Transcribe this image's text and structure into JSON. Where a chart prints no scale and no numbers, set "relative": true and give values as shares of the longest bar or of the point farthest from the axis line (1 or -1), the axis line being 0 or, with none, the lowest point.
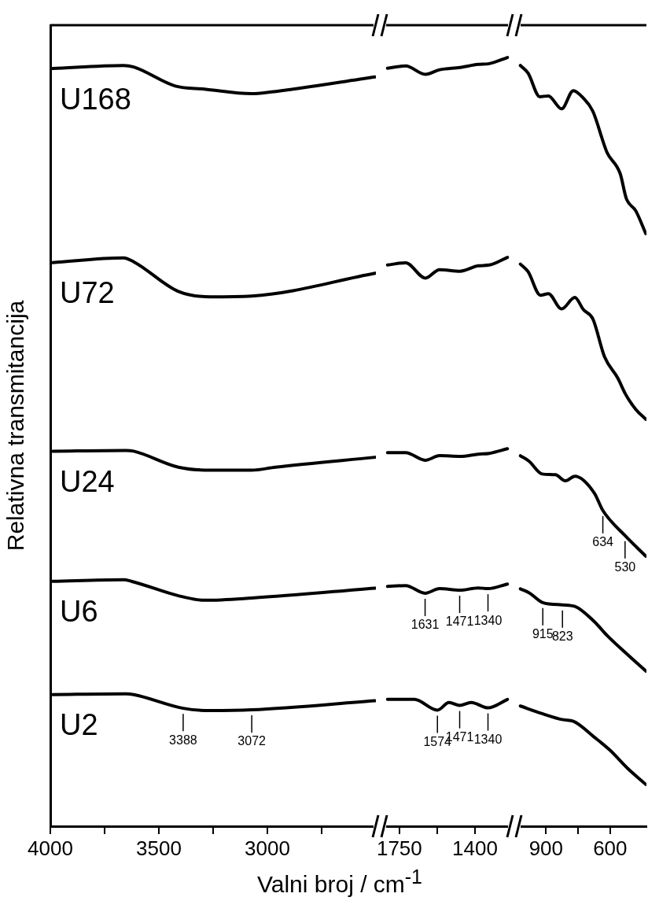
{
  "chart_data": [
    {
      "type": "line",
      "relative": true,
      "ylabel": "Relativna transmitancija",
      "xlabel": "Valni broj / cm$^{-1}$",
      "marker": "none",
      "xlim": [
        4000,
        2500
      ],
      "xticks": [
        4000,
        {
          "value": 3750,
          "label": null
        },
        3500,
        {
          "value": 3250,
          "label": null
        },
        3000,
        {
          "value": 2750,
          "label": null
        }
      ],
      "series": [
        {
          "name": "U168",
          "color": "#000000",
          "x": [
            3989,
            3663,
            3616,
            3424,
            3290,
            3072,
            2989,
            2504
          ],
          "values": [
            0.996,
            1,
            0.998,
            0.973,
            0.969,
            0.963,
            0.965,
            0.985
          ]
        },
        {
          "name": "U72",
          "color": "#000000",
          "x": [
            3989,
            3663,
            3616,
            3410,
            3265,
            3072,
            2504
          ],
          "values": [
            0.741,
            0.747,
            0.742,
            0.703,
            0.696,
            0.697,
            0.727
          ]
        },
        {
          "name": "U24",
          "color": "#000000",
          "x": [
            3989,
            3652,
            3616,
            3410,
            3265,
            3072,
            2963,
            2504
          ],
          "values": [
            0.493,
            0.494,
            0.493,
            0.472,
            0.468,
            0.468,
            0.472,
            0.485
          ]
        },
        {
          "name": "U6",
          "color": "#000000",
          "x": [
            3989,
            3663,
            3627,
            3410,
            3290,
            3072,
            2504
          ],
          "values": [
            0.322,
            0.324,
            0.322,
            0.303,
            0.297,
            0.3,
            0.313
          ]
        },
        {
          "name": "U2",
          "color": "#000000",
          "x": [
            3989,
            3652,
            3616,
            3388,
            3265,
            3072,
            2504
          ],
          "values": [
            0.173,
            0.174,
            0.173,
            0.155,
            0.152,
            0.153,
            0.165
          ]
        }
      ],
      "annotations": [
        {
          "text": "3388",
          "x": 3388,
          "y": 0.155
        },
        {
          "text": "3072",
          "x": 3072,
          "y": 0.153
        }
      ]
    },
    {
      "type": "line",
      "relative": true,
      "marker": "none",
      "xlim": [
        1815,
        1240
      ],
      "xticks": [
        1750,
        {
          "value": 1575,
          "label": null
        },
        1400
      ],
      "series": [
        {
          "color": "#000000",
          "x": [
            1805,
            1721,
            1630,
            1564,
            1469,
            1385,
            1334,
            1250
          ],
          "values": [
            0.986,
            0.989,
            0.978,
            0.984,
            0.987,
            0.991,
            0.992,
            1
          ]
        },
        {
          "color": "#000000",
          "x": [
            1805,
            1721,
            1630,
            1564,
            1469,
            1385,
            1334,
            1250
          ],
          "values": [
            0.73,
            0.733,
            0.713,
            0.724,
            0.722,
            0.729,
            0.73,
            0.74
          ]
        },
        {
          "color": "#000000",
          "x": [
            1805,
            1721,
            1630,
            1564,
            1469,
            1385,
            1334,
            1250
          ],
          "values": [
            0.486,
            0.486,
            0.476,
            0.482,
            0.481,
            0.484,
            0.485,
            0.491
          ]
        },
        {
          "color": "#000000",
          "x": [
            1805,
            1721,
            1631,
            1564,
            1471,
            1385,
            1340,
            1250
          ],
          "values": [
            0.312,
            0.313,
            0.303,
            0.309,
            0.307,
            0.31,
            0.309,
            0.315
          ]
        },
        {
          "color": "#000000",
          "x": [
            1805,
            1681,
            1574,
            1520,
            1471,
            1418,
            1340,
            1250
          ],
          "values": [
            0.165,
            0.165,
            0.151,
            0.161,
            0.157,
            0.161,
            0.154,
            0.165
          ]
        }
      ],
      "annotations": [
        {
          "text": "1631",
          "x": 1631,
          "y": 0.303
        },
        {
          "text": "1471",
          "x": 1471,
          "y": 0.307
        },
        {
          "text": "1340",
          "x": 1340,
          "y": 0.309
        },
        {
          "text": "1574",
          "x": 1574,
          "y": 0.151
        },
        {
          "text": "1471",
          "x": 1471,
          "y": 0.157
        },
        {
          "text": "1340",
          "x": 1340,
          "y": 0.154
        }
      ]
    },
    {
      "type": "line",
      "relative": true,
      "marker": "none",
      "xlim": [
        1030,
        430
      ],
      "xticks": [
        900,
        {
          "value": 750,
          "label": null
        },
        600
      ],
      "series": [
        {
          "color": "#000000",
          "x": [
            1020,
            984,
            929,
            889,
            827,
            772,
            725,
            681,
            615,
            553,
            524,
            480,
            433
          ],
          "values": [
            1,
            0.99,
            0.959,
            0.96,
            0.943,
            0.967,
            0.957,
            0.94,
            0.886,
            0.858,
            0.825,
            0.809,
            0.779
          ]
        },
        {
          "color": "#000000",
          "x": [
            1020,
            984,
            926,
            889,
            827,
            765,
            725,
            681,
            626,
            564,
            528,
            480,
            433
          ],
          "values": [
            0.739,
            0.729,
            0.698,
            0.7,
            0.68,
            0.695,
            0.679,
            0.667,
            0.617,
            0.589,
            0.568,
            0.548,
            0.535
          ]
        },
        {
          "color": "#000000",
          "x": [
            1020,
            980,
            918,
            856,
            809,
            765,
            674,
            634,
            530,
            433
          ],
          "values": [
            0.487,
            0.48,
            0.463,
            0.462,
            0.454,
            0.46,
            0.438,
            0.415,
            0.382,
            0.355
          ]
        },
        {
          "color": "#000000",
          "x": [
            1020,
            980,
            915,
            823,
            765,
            674,
            615,
            528,
            433
          ],
          "values": [
            0.312,
            0.307,
            0.294,
            0.291,
            0.289,
            0.269,
            0.251,
            0.228,
            0.204
          ]
        },
        {
          "color": "#000000",
          "x": [
            1020,
            918,
            820,
            772,
            674,
            601,
            518,
            433
          ],
          "values": [
            0.158,
            0.148,
            0.14,
            0.138,
            0.117,
            0.1,
            0.076,
            0.055
          ]
        }
      ],
      "annotations": [
        {
          "text": "915",
          "x": 915,
          "y": 0.294
        },
        {
          "text": "823",
          "x": 823,
          "y": 0.291
        },
        {
          "text": "634",
          "x": 634,
          "y": 0.415
        },
        {
          "text": "530",
          "x": 530,
          "y": 0.382
        }
      ]
    }
  ]
}
